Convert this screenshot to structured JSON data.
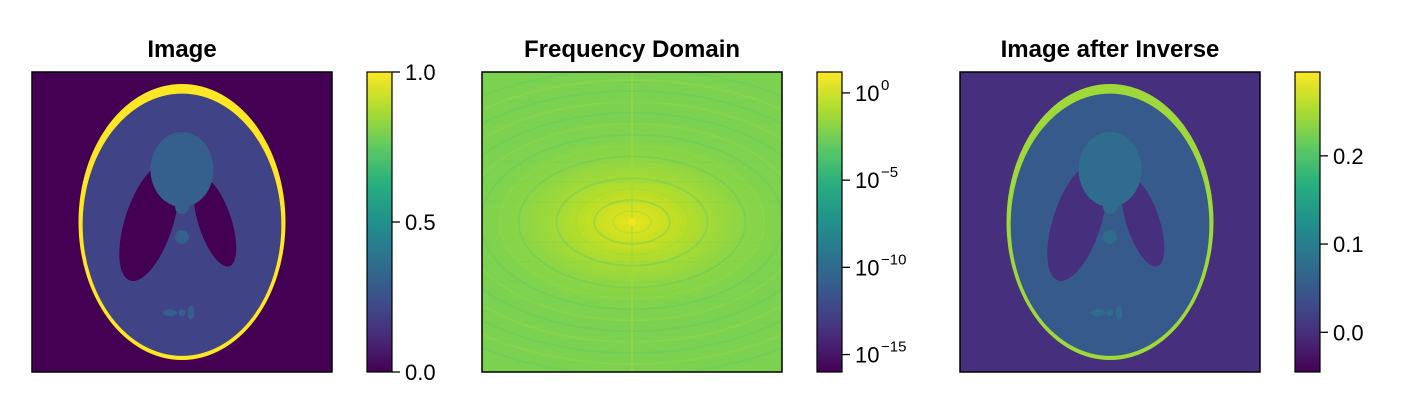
{
  "chart_data": [
    {
      "type": "heatmap",
      "title": "Image",
      "content": "Shepp-Logan phantom",
      "colormap": "viridis",
      "colorbar": {
        "scale": "linear",
        "range": [
          0.0,
          1.0
        ],
        "ticks": [
          {
            "value": 0.0,
            "label": "0.0"
          },
          {
            "value": 0.5,
            "label": "0.5"
          },
          {
            "value": 1.0,
            "label": "1.0"
          }
        ]
      },
      "background_value": 0.0,
      "skull_value": 1.0,
      "brain_value": 0.2,
      "feature_value": 0.3
    },
    {
      "type": "heatmap",
      "title": "Frequency Domain",
      "content": "FFT magnitude, log scale",
      "colormap": "viridis",
      "colorbar": {
        "scale": "log",
        "log_range": [
          -16,
          1.2
        ],
        "ticks": [
          {
            "exp": 0,
            "base": "10",
            "sup": "0"
          },
          {
            "exp": -5,
            "base": "10",
            "sup": "−5"
          },
          {
            "exp": -10,
            "base": "10",
            "sup": "−10"
          },
          {
            "exp": -15,
            "base": "10",
            "sup": "−15"
          }
        ]
      }
    },
    {
      "type": "heatmap",
      "title": "Image after Inverse",
      "content": "Reconstructed phantom",
      "colormap": "viridis",
      "colorbar": {
        "scale": "linear",
        "range": [
          -0.045,
          0.295
        ],
        "ticks": [
          {
            "value": 0.0,
            "label": "0.0"
          },
          {
            "value": 0.1,
            "label": "0.1"
          },
          {
            "value": 0.2,
            "label": "0.2"
          }
        ]
      },
      "background_value": 0.0,
      "skull_value": 0.245,
      "brain_value": 0.05,
      "feature_value": 0.075
    }
  ]
}
